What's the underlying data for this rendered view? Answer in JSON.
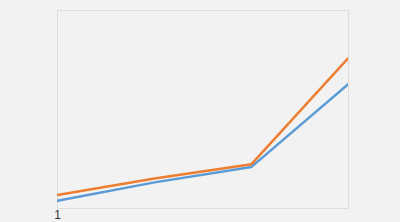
{
  "chart_data": {
    "type": "line",
    "categories": [
      "1",
      null,
      null,
      null
    ],
    "series": [
      {
        "color": "#5b9bd5",
        "values": [
          3.9,
          13.2,
          21,
          62.9
        ]
      },
      {
        "color": "#ed7d31",
        "values": [
          6.8,
          15.1,
          22.4,
          76.1
        ]
      }
    ],
    "ylim": [
      0,
      100
    ],
    "tick_labels": "x"
  }
}
